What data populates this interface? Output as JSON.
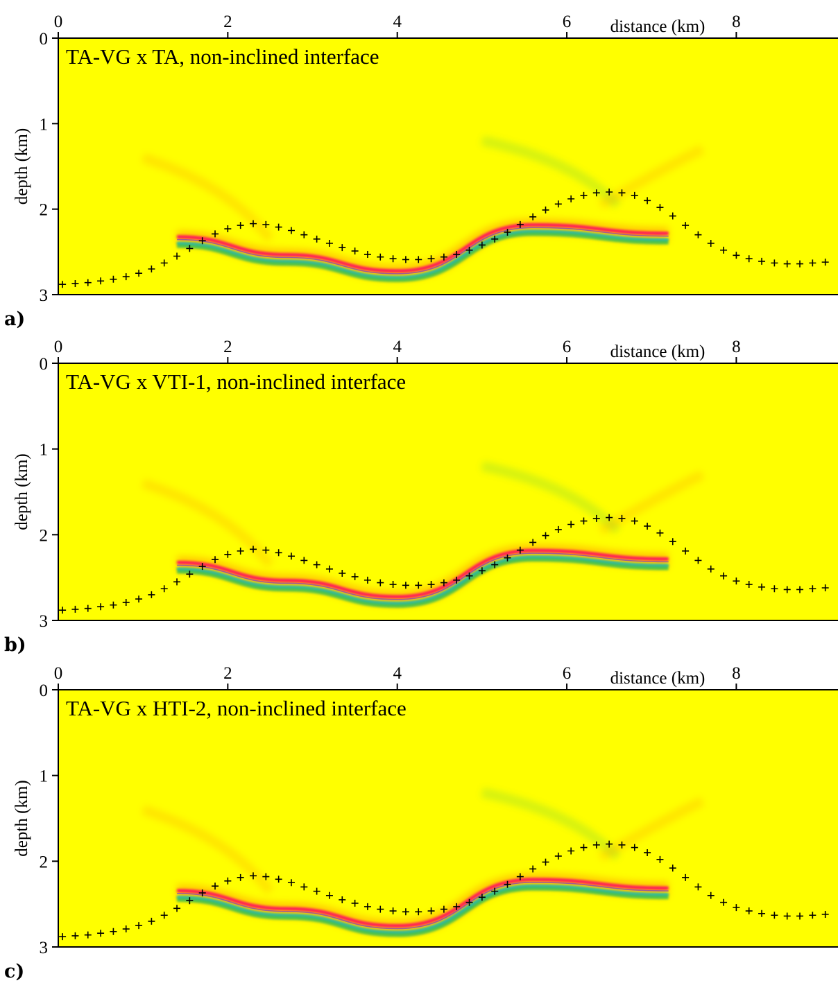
{
  "figure": {
    "background_color": "#ffff00",
    "colors": {
      "positive_strong": "#ff0066",
      "positive_weak": "#ff8a00",
      "negative_strong": "#00b0e8",
      "negative_weak": "#40c050",
      "peak": "#5020ff",
      "markers": "#000000"
    }
  },
  "chart_data": [
    {
      "type": "heatmap",
      "panel_label": "a)",
      "title": "TA-VG x TA, non-inclined interface",
      "xlabel": "distance (km)",
      "ylabel": "depth (km)",
      "xlim": [
        0,
        9.2
      ],
      "ylim": [
        3,
        0
      ],
      "x_ticks": [
        "0",
        "2",
        "4",
        "6",
        "8"
      ],
      "y_ticks": [
        "0",
        "1",
        "2",
        "3"
      ],
      "reflector": {
        "x": [
          1.4,
          2.7,
          4.0,
          5.6,
          7.2
        ],
        "depth": [
          2.34,
          2.55,
          2.74,
          2.2,
          2.3
        ]
      },
      "markers": {
        "x": [
          0.05,
          0.2,
          0.35,
          0.5,
          0.65,
          0.8,
          0.95,
          1.1,
          1.25,
          1.4,
          1.55,
          1.7,
          1.85,
          2.0,
          2.15,
          2.3,
          2.45,
          2.6,
          2.75,
          2.9,
          3.05,
          3.2,
          3.35,
          3.5,
          3.65,
          3.8,
          3.95,
          4.1,
          4.25,
          4.4,
          4.55,
          4.7,
          4.85,
          5.0,
          5.15,
          5.3,
          5.45,
          5.6,
          5.75,
          5.9,
          6.05,
          6.2,
          6.35,
          6.5,
          6.65,
          6.8,
          6.95,
          7.1,
          7.25,
          7.4,
          7.55,
          7.7,
          7.85,
          8.0,
          8.15,
          8.3,
          8.45,
          8.6,
          8.75,
          8.9,
          9.05
        ],
        "depth": [
          2.88,
          2.87,
          2.86,
          2.84,
          2.82,
          2.79,
          2.75,
          2.7,
          2.63,
          2.55,
          2.46,
          2.37,
          2.29,
          2.23,
          2.19,
          2.17,
          2.18,
          2.21,
          2.25,
          2.3,
          2.35,
          2.4,
          2.45,
          2.49,
          2.53,
          2.56,
          2.58,
          2.59,
          2.59,
          2.58,
          2.56,
          2.53,
          2.48,
          2.42,
          2.35,
          2.27,
          2.18,
          2.09,
          2.01,
          1.94,
          1.88,
          1.84,
          1.81,
          1.8,
          1.81,
          1.84,
          1.9,
          1.98,
          2.08,
          2.19,
          2.3,
          2.4,
          2.48,
          2.54,
          2.58,
          2.61,
          2.63,
          2.64,
          2.64,
          2.63,
          2.62
        ]
      }
    },
    {
      "type": "heatmap",
      "panel_label": "b)",
      "title": "TA-VG x VTI-1, non-inclined interface",
      "xlabel": "distance (km)",
      "ylabel": "depth (km)",
      "xlim": [
        0,
        9.2
      ],
      "ylim": [
        3,
        0
      ],
      "x_ticks": [
        "0",
        "2",
        "4",
        "6",
        "8"
      ],
      "y_ticks": [
        "0",
        "1",
        "2",
        "3"
      ],
      "reflector": {
        "x": [
          1.4,
          2.7,
          4.0,
          5.6,
          7.2
        ],
        "depth": [
          2.34,
          2.55,
          2.74,
          2.2,
          2.3
        ]
      },
      "markers": {
        "x": [
          0.05,
          0.2,
          0.35,
          0.5,
          0.65,
          0.8,
          0.95,
          1.1,
          1.25,
          1.4,
          1.55,
          1.7,
          1.85,
          2.0,
          2.15,
          2.3,
          2.45,
          2.6,
          2.75,
          2.9,
          3.05,
          3.2,
          3.35,
          3.5,
          3.65,
          3.8,
          3.95,
          4.1,
          4.25,
          4.4,
          4.55,
          4.7,
          4.85,
          5.0,
          5.15,
          5.3,
          5.45,
          5.6,
          5.75,
          5.9,
          6.05,
          6.2,
          6.35,
          6.5,
          6.65,
          6.8,
          6.95,
          7.1,
          7.25,
          7.4,
          7.55,
          7.7,
          7.85,
          8.0,
          8.15,
          8.3,
          8.45,
          8.6,
          8.75,
          8.9,
          9.05
        ],
        "depth": [
          2.88,
          2.87,
          2.86,
          2.84,
          2.82,
          2.79,
          2.75,
          2.7,
          2.63,
          2.55,
          2.46,
          2.37,
          2.29,
          2.23,
          2.19,
          2.17,
          2.18,
          2.21,
          2.25,
          2.3,
          2.35,
          2.4,
          2.45,
          2.49,
          2.53,
          2.56,
          2.58,
          2.59,
          2.59,
          2.58,
          2.56,
          2.53,
          2.48,
          2.42,
          2.35,
          2.27,
          2.18,
          2.09,
          2.01,
          1.94,
          1.88,
          1.84,
          1.81,
          1.8,
          1.81,
          1.84,
          1.9,
          1.98,
          2.08,
          2.19,
          2.3,
          2.4,
          2.48,
          2.54,
          2.58,
          2.61,
          2.63,
          2.64,
          2.64,
          2.63,
          2.62
        ]
      }
    },
    {
      "type": "heatmap",
      "panel_label": "c)",
      "title": "TA-VG x HTI-2, non-inclined interface",
      "xlabel": "distance (km)",
      "ylabel": "depth (km)",
      "xlim": [
        0,
        9.2
      ],
      "ylim": [
        3,
        0
      ],
      "x_ticks": [
        "0",
        "2",
        "4",
        "6",
        "8"
      ],
      "y_ticks": [
        "0",
        "1",
        "2",
        "3"
      ],
      "reflector": {
        "x": [
          1.4,
          2.7,
          4.0,
          5.6,
          7.2
        ],
        "depth": [
          2.36,
          2.57,
          2.77,
          2.23,
          2.33
        ]
      },
      "markers": {
        "x": [
          0.05,
          0.2,
          0.35,
          0.5,
          0.65,
          0.8,
          0.95,
          1.1,
          1.25,
          1.4,
          1.55,
          1.7,
          1.85,
          2.0,
          2.15,
          2.3,
          2.45,
          2.6,
          2.75,
          2.9,
          3.05,
          3.2,
          3.35,
          3.5,
          3.65,
          3.8,
          3.95,
          4.1,
          4.25,
          4.4,
          4.55,
          4.7,
          4.85,
          5.0,
          5.15,
          5.3,
          5.45,
          5.6,
          5.75,
          5.9,
          6.05,
          6.2,
          6.35,
          6.5,
          6.65,
          6.8,
          6.95,
          7.1,
          7.25,
          7.4,
          7.55,
          7.7,
          7.85,
          8.0,
          8.15,
          8.3,
          8.45,
          8.6,
          8.75,
          8.9,
          9.05
        ],
        "depth": [
          2.88,
          2.87,
          2.86,
          2.84,
          2.82,
          2.79,
          2.75,
          2.7,
          2.63,
          2.55,
          2.46,
          2.37,
          2.29,
          2.23,
          2.19,
          2.17,
          2.18,
          2.21,
          2.25,
          2.3,
          2.35,
          2.4,
          2.45,
          2.49,
          2.53,
          2.56,
          2.58,
          2.59,
          2.59,
          2.58,
          2.56,
          2.53,
          2.48,
          2.42,
          2.35,
          2.27,
          2.18,
          2.09,
          2.01,
          1.94,
          1.88,
          1.84,
          1.81,
          1.8,
          1.81,
          1.84,
          1.9,
          1.98,
          2.08,
          2.19,
          2.3,
          2.4,
          2.48,
          2.54,
          2.58,
          2.61,
          2.63,
          2.64,
          2.64,
          2.63,
          2.62
        ]
      }
    }
  ]
}
